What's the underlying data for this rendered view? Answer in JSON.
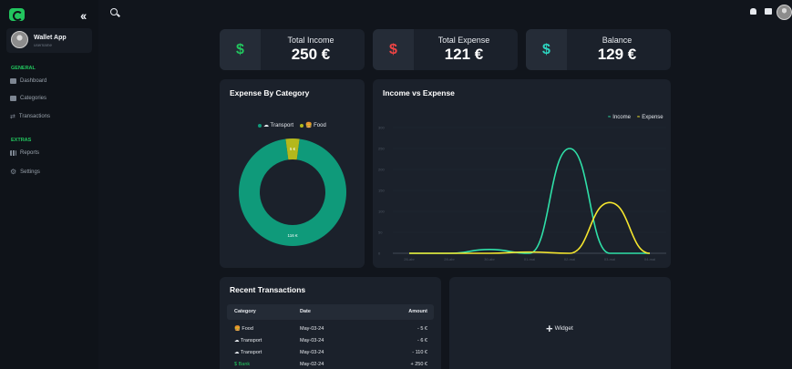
{
  "sidebar": {
    "profile": {
      "name": "Wallet App",
      "subtitle": "username"
    },
    "sections": [
      {
        "label": "GENERAL",
        "items": [
          {
            "label": "Dashboard",
            "icon": "calendar-icon"
          },
          {
            "label": "Categories",
            "icon": "folder-icon"
          },
          {
            "label": "Transactions",
            "icon": "arrows-icon"
          }
        ]
      },
      {
        "label": "EXTRAS",
        "items": [
          {
            "label": "Reports",
            "icon": "bar-chart-icon"
          },
          {
            "label": "Settings",
            "icon": "gear-icon"
          }
        ]
      }
    ]
  },
  "stats": [
    {
      "label": "Total Income",
      "value": "250 €",
      "icon": "$",
      "color": "#22c55e"
    },
    {
      "label": "Total Expense",
      "value": "121 €",
      "icon": "$",
      "color": "#ef4444"
    },
    {
      "label": "Balance",
      "value": "129 €",
      "icon": "$",
      "color": "#2dd4bf"
    }
  ],
  "expense_by_category": {
    "title": "Expense By Category",
    "legend": [
      {
        "label": "☁ Transport",
        "color": "#0f9a7a"
      },
      {
        "label": "🍔 Food",
        "color": "#b4b81c"
      }
    ]
  },
  "income_vs_expense": {
    "title": "Income vs Expense",
    "legend": [
      {
        "label": "Income",
        "color": "#2fe0a8"
      },
      {
        "label": "Expense",
        "color": "#f5e62e"
      }
    ]
  },
  "chart_data": [
    {
      "type": "pie",
      "title": "Expense By Category",
      "categories": [
        "Transport",
        "Food"
      ],
      "values": [
        116,
        5
      ],
      "labels": [
        "116 €",
        "5 €"
      ],
      "colors": [
        "#0f9a7a",
        "#b4b81c"
      ]
    },
    {
      "type": "line",
      "title": "Income vs Expense",
      "x": [
        "26-abr",
        "28-abr",
        "30-abr",
        "01-mai",
        "02-mai",
        "03-mai",
        "04-mai"
      ],
      "ylim": [
        0,
        300
      ],
      "yticks": [
        "0",
        "50",
        "100",
        "150",
        "200",
        "250",
        "300"
      ],
      "series": [
        {
          "name": "Income",
          "color": "#2fe0a8",
          "values": [
            0,
            0,
            9,
            0,
            250,
            0,
            0
          ]
        },
        {
          "name": "Expense",
          "color": "#f5e62e",
          "values": [
            0,
            0,
            0,
            3,
            0,
            121,
            0
          ]
        }
      ],
      "legend_position": "top-right",
      "grid": true
    }
  ],
  "recent": {
    "title": "Recent Transactions",
    "headers": {
      "category": "Category",
      "date": "Date",
      "amount": "Amount"
    },
    "rows": [
      {
        "category": "🍔 Food",
        "date": "May-03-24",
        "amount": "- 5 €"
      },
      {
        "category": "☁ Transport",
        "date": "May-03-24",
        "amount": "- 6 €"
      },
      {
        "category": "☁ Transport",
        "date": "May-03-24",
        "amount": "- 110 €"
      },
      {
        "category": "$ Bank",
        "date": "May-02-24",
        "amount": "+ 250 €"
      }
    ]
  },
  "widget": {
    "label": "Widget"
  }
}
